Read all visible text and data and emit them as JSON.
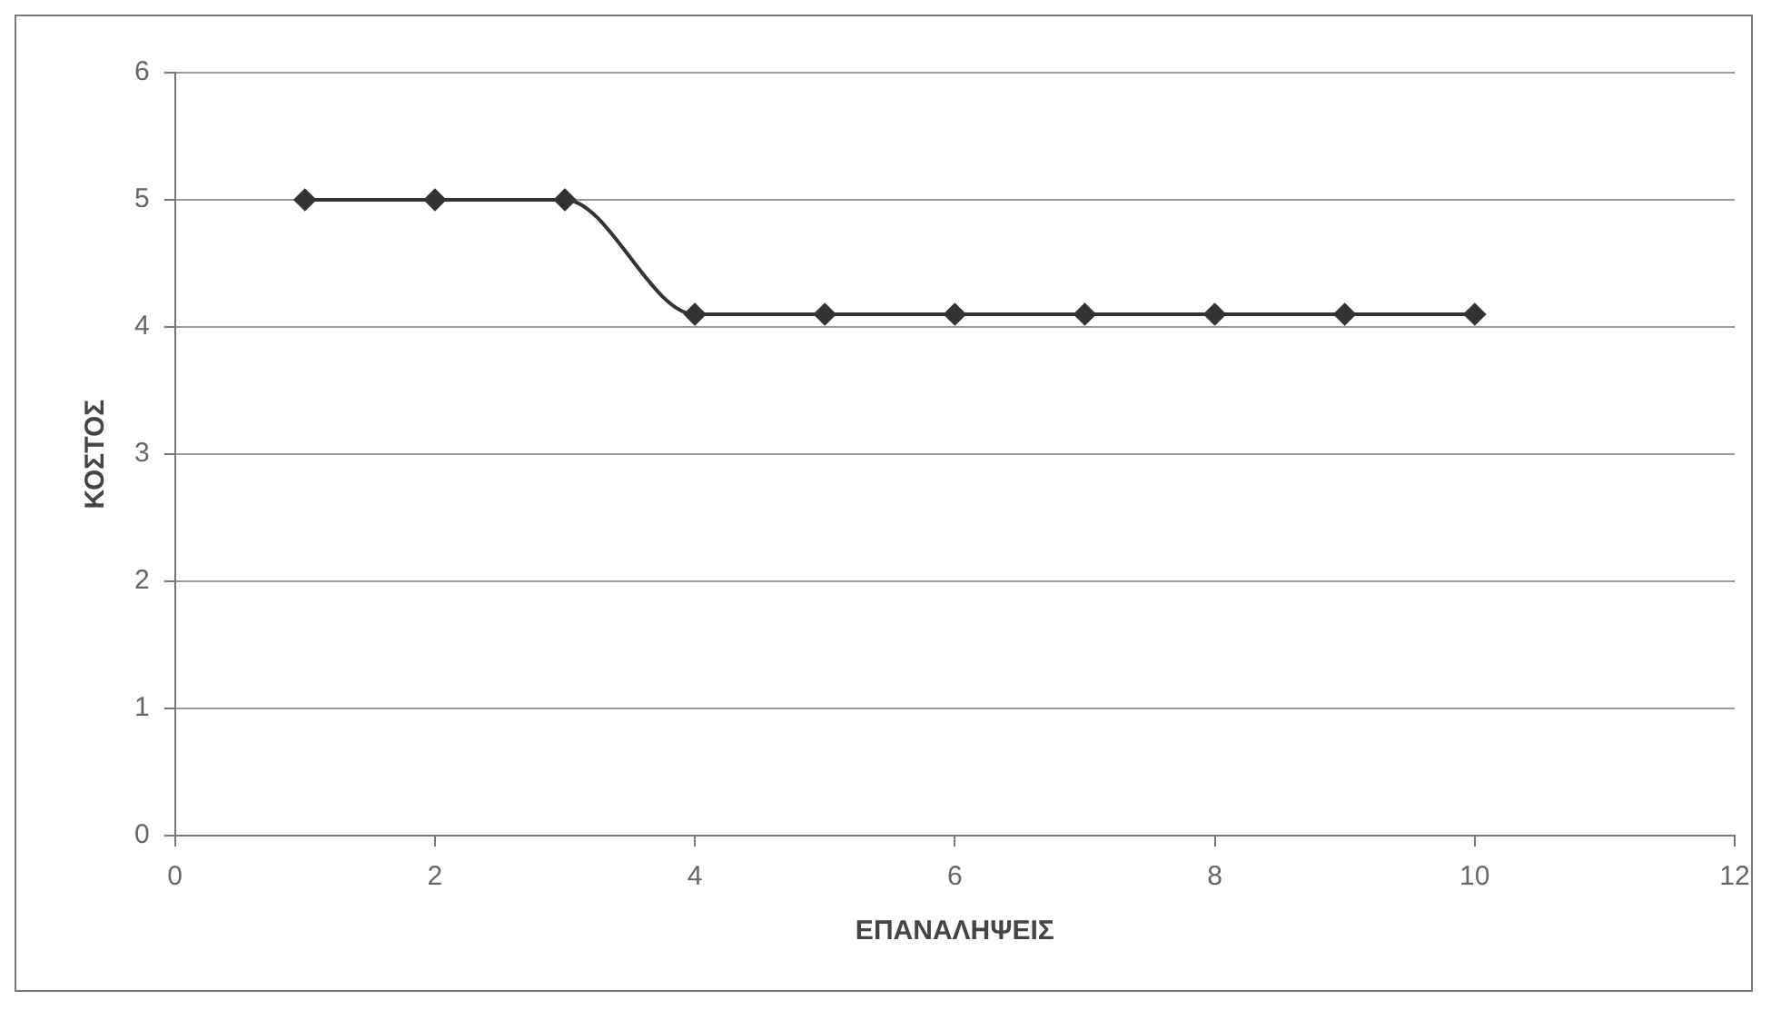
{
  "chart_data": {
    "type": "line",
    "xlabel": "ΕΠΑΝΑΛΗΨΕΙΣ",
    "ylabel": "ΚΟΣΤΟΣ",
    "x": [
      1,
      2,
      3,
      4,
      5,
      6,
      7,
      8,
      9,
      10
    ],
    "series": [
      {
        "color": "#333333",
        "values": [
          5,
          5,
          5,
          4.1,
          4.1,
          4.1,
          4.1,
          4.1,
          4.1,
          4.1
        ]
      }
    ],
    "xlim": [
      0,
      12
    ],
    "xticks": [
      0,
      2,
      4,
      6,
      8,
      10,
      12
    ],
    "ylim": [
      0,
      6
    ],
    "yticks": [
      0,
      1,
      2,
      3,
      4,
      5,
      6
    ],
    "grid": "y",
    "legend": false,
    "marker": "diamond",
    "line_style": "solid"
  }
}
